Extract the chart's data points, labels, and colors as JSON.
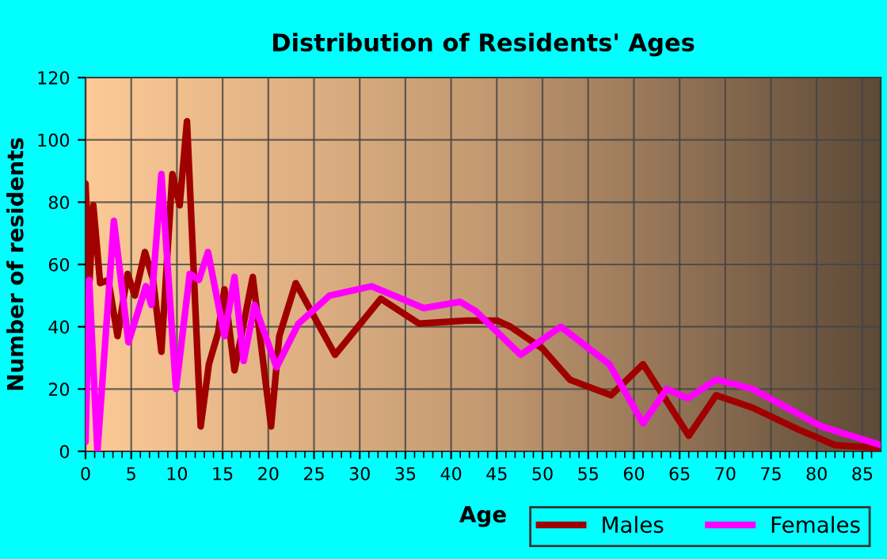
{
  "chart_data": {
    "type": "line",
    "title": "Distribution of Residents' Ages",
    "xlabel": "Age",
    "ylabel": "Number of residents",
    "xlim": [
      0,
      87
    ],
    "xticks": [
      0,
      5,
      10,
      15,
      20,
      25,
      30,
      35,
      40,
      45,
      50,
      55,
      60,
      65,
      70,
      75,
      80,
      85
    ],
    "ylim": [
      0,
      120
    ],
    "yticks": [
      0,
      20,
      40,
      60,
      80,
      100,
      120
    ],
    "grid": true,
    "legend": "bottom right",
    "marker": "none",
    "line_style": "solid",
    "series": [
      {
        "name": "Males",
        "color": "#a00000",
        "x": [
          0,
          0.45,
          0.85,
          1.6,
          2.5,
          3.5,
          4.6,
          5.4,
          6.5,
          7.4,
          8.3,
          9.5,
          10.3,
          11.1,
          12.6,
          13.5,
          14.5,
          15.2,
          16.3,
          18.3,
          20.3,
          21.2,
          23.0,
          27.3,
          32.3,
          36.5,
          41.6,
          45,
          46.5,
          50,
          53,
          57.5,
          61,
          66,
          69,
          73,
          78,
          82,
          87
        ],
        "values": [
          86,
          55,
          79,
          54,
          55,
          37,
          57,
          50,
          64,
          55,
          32,
          89,
          79,
          106,
          8,
          28,
          38,
          52,
          26,
          56,
          8,
          37,
          54,
          31,
          49,
          41,
          42,
          42,
          40,
          33,
          23,
          18,
          28,
          5,
          18,
          14,
          7,
          2,
          1
        ]
      },
      {
        "name": "Females",
        "color": "#ff00ff",
        "x": [
          0,
          0.4,
          1.3,
          3.1,
          4.7,
          6.6,
          7.2,
          8.3,
          9.9,
          11.4,
          12.4,
          13.4,
          15.2,
          16.3,
          17.3,
          18.5,
          20.9,
          23.3,
          26.7,
          31.3,
          37,
          41,
          42.7,
          47.6,
          52,
          57.3,
          61,
          63.6,
          65.9,
          69,
          73,
          80.5,
          87
        ],
        "values": [
          3,
          55,
          0,
          74,
          35,
          53,
          47,
          89,
          20,
          57,
          55,
          64,
          37,
          56,
          29,
          47,
          27,
          41,
          50,
          53,
          46,
          48,
          45,
          31,
          40,
          28,
          9,
          20,
          17,
          23,
          20,
          8,
          2
        ]
      }
    ]
  }
}
